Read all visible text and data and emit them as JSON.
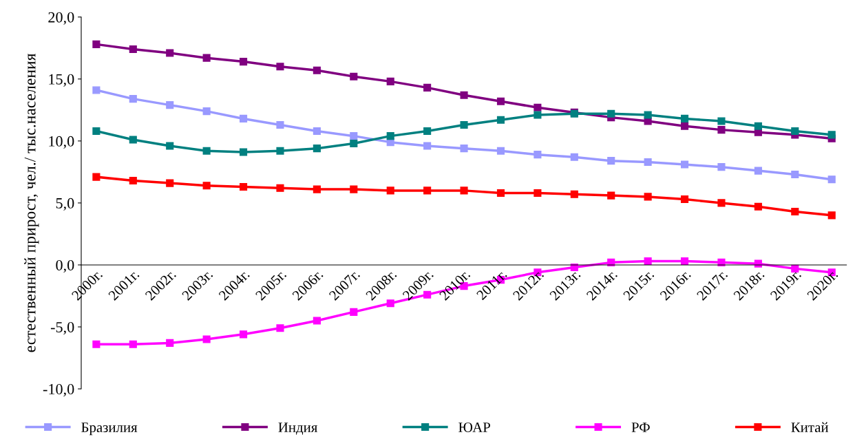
{
  "chart_data": {
    "type": "line",
    "ylabel": "естественный прирост, чел./ тыс.населения",
    "categories": [
      "2000г.",
      "2001г.",
      "2002г.",
      "2003г.",
      "2004г.",
      "2005г.",
      "2006г.",
      "2007г.",
      "2008г.",
      "2009г.",
      "2010г.",
      "2011г.",
      "2012г.",
      "2013г.",
      "2014г.",
      "2015г.",
      "2016г.",
      "2017г.",
      "2018г.",
      "2019г.",
      "2020г."
    ],
    "series": [
      {
        "name": "Бразилия",
        "color": "#9999ff",
        "values": [
          14.1,
          13.4,
          12.9,
          12.4,
          11.8,
          11.3,
          10.8,
          10.4,
          9.9,
          9.6,
          9.4,
          9.2,
          8.9,
          8.7,
          8.4,
          8.3,
          8.1,
          7.9,
          7.6,
          7.3,
          6.9
        ]
      },
      {
        "name": "Индия",
        "color": "#800080",
        "values": [
          17.8,
          17.4,
          17.1,
          16.7,
          16.4,
          16.0,
          15.7,
          15.2,
          14.8,
          14.3,
          13.7,
          13.2,
          12.7,
          12.3,
          11.9,
          11.6,
          11.2,
          10.9,
          10.7,
          10.5,
          10.2
        ]
      },
      {
        "name": "ЮАР",
        "color": "#008080",
        "values": [
          10.8,
          10.1,
          9.6,
          9.2,
          9.1,
          9.2,
          9.4,
          9.8,
          10.4,
          10.8,
          11.3,
          11.7,
          12.1,
          12.2,
          12.2,
          12.1,
          11.8,
          11.6,
          11.2,
          10.8,
          10.5
        ]
      },
      {
        "name": "РФ",
        "color": "#ff00ff",
        "values": [
          -6.4,
          -6.4,
          -6.3,
          -6.0,
          -5.6,
          -5.1,
          -4.5,
          -3.8,
          -3.1,
          -2.4,
          -1.7,
          -1.2,
          -0.6,
          -0.2,
          0.2,
          0.3,
          0.3,
          0.2,
          0.1,
          -0.3,
          -0.6
        ]
      },
      {
        "name": "Китай",
        "color": "#ff0000",
        "values": [
          7.1,
          6.8,
          6.6,
          6.4,
          6.3,
          6.2,
          6.1,
          6.1,
          6.0,
          6.0,
          6.0,
          5.8,
          5.8,
          5.7,
          5.6,
          5.5,
          5.3,
          5.0,
          4.7,
          4.3,
          4.0
        ]
      }
    ],
    "ylim": [
      -10,
      20
    ],
    "yticks": [
      {
        "value": -10,
        "label": "-10,0"
      },
      {
        "value": -5,
        "label": "-5,0"
      },
      {
        "value": 0,
        "label": "0,0"
      },
      {
        "value": 5,
        "label": "5,0"
      },
      {
        "value": 10,
        "label": "10,0"
      },
      {
        "value": 15,
        "label": "15,0"
      },
      {
        "value": 20,
        "label": "20,0"
      }
    ],
    "grid": false,
    "legend": "bottom",
    "marker": "square",
    "line_style": "solid"
  }
}
